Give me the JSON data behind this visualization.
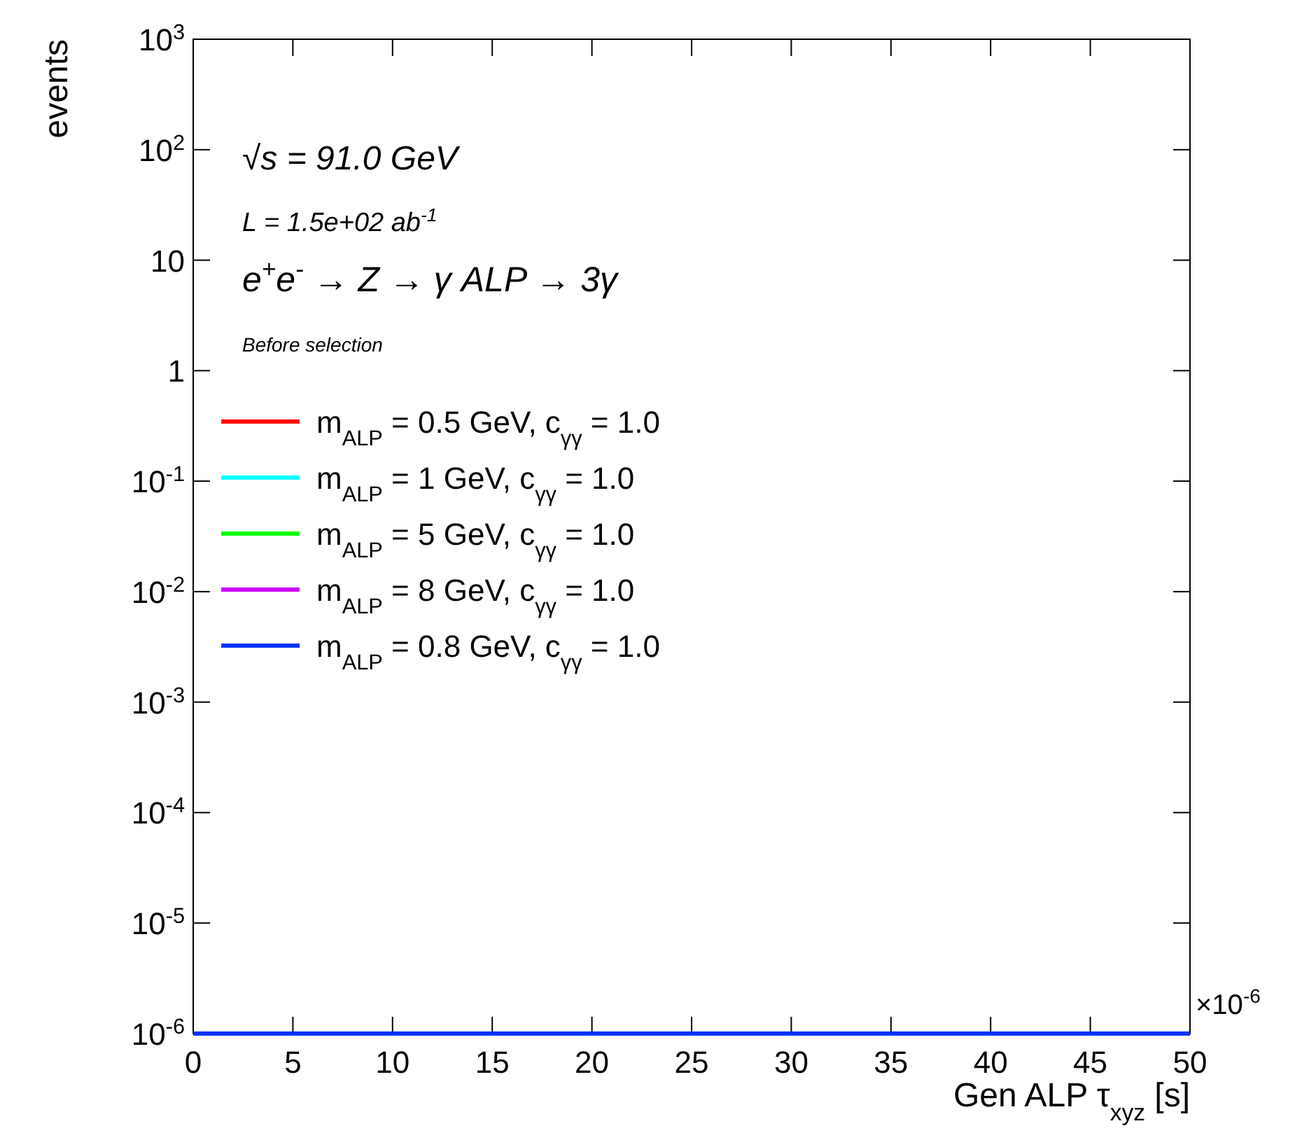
{
  "chart_data": {
    "type": "step",
    "xlabel": "Gen ALP   τ$_{xyz}$ [s]",
    "ylabel": "events",
    "x": [
      0,
      50
    ],
    "xlim": [
      0,
      50
    ],
    "xticks": [
      0,
      5,
      10,
      15,
      20,
      25,
      30,
      35,
      40,
      45,
      50
    ],
    "ylim": [
      1e-06,
      1000
    ],
    "log": true,
    "yticks": [
      {
        "value": 1e-06,
        "label": "10$^{-6}$"
      },
      {
        "value": 1e-05,
        "label": "10$^{-5}$"
      },
      {
        "value": 0.0001,
        "label": "10$^{-4}$"
      },
      {
        "value": 0.001,
        "label": "10$^{-3}$"
      },
      {
        "value": 0.01,
        "label": "10$^{-2}$"
      },
      {
        "value": 0.1,
        "label": "10$^{-1}$"
      },
      1,
      10,
      {
        "value": 100,
        "label": "10$^{2}$"
      },
      {
        "value": 1000,
        "label": "10$^{3}$"
      }
    ],
    "grid": false,
    "legend": "left",
    "annotations": [
      "√s = 91.0 GeV",
      "L = 1.5e+02 ab$^{-1}$",
      "e$^{+}$e$^{-}$  → Z  →  γ ALP  → 3γ",
      "Before selection",
      "×10$^{-6}$"
    ],
    "series": [
      {
        "name": "m$_{ALP}$ = 0.5 GeV, c$_{γγ}$ = 1.0",
        "color": "#ff0000",
        "values": [
          null,
          null
        ]
      },
      {
        "name": "m$_{ALP}$ = 1 GeV, c$_{γγ}$ = 1.0",
        "color": "#00ffff",
        "values": [
          null,
          null
        ]
      },
      {
        "name": "m$_{ALP}$ = 5 GeV, c$_{γγ}$ = 1.0",
        "color": "#00ff00",
        "values": [
          null,
          null
        ]
      },
      {
        "name": "m$_{ALP}$ = 8 GeV, c$_{γγ}$ = 1.0",
        "color": "#cc00ff",
        "values": [
          null,
          null
        ]
      },
      {
        "name": "m$_{ALP}$ = 0.8 GeV, c$_{γγ}$ = 1.0",
        "color": "#0033ff",
        "values": [
          1e-06,
          1e-06
        ]
      }
    ]
  }
}
